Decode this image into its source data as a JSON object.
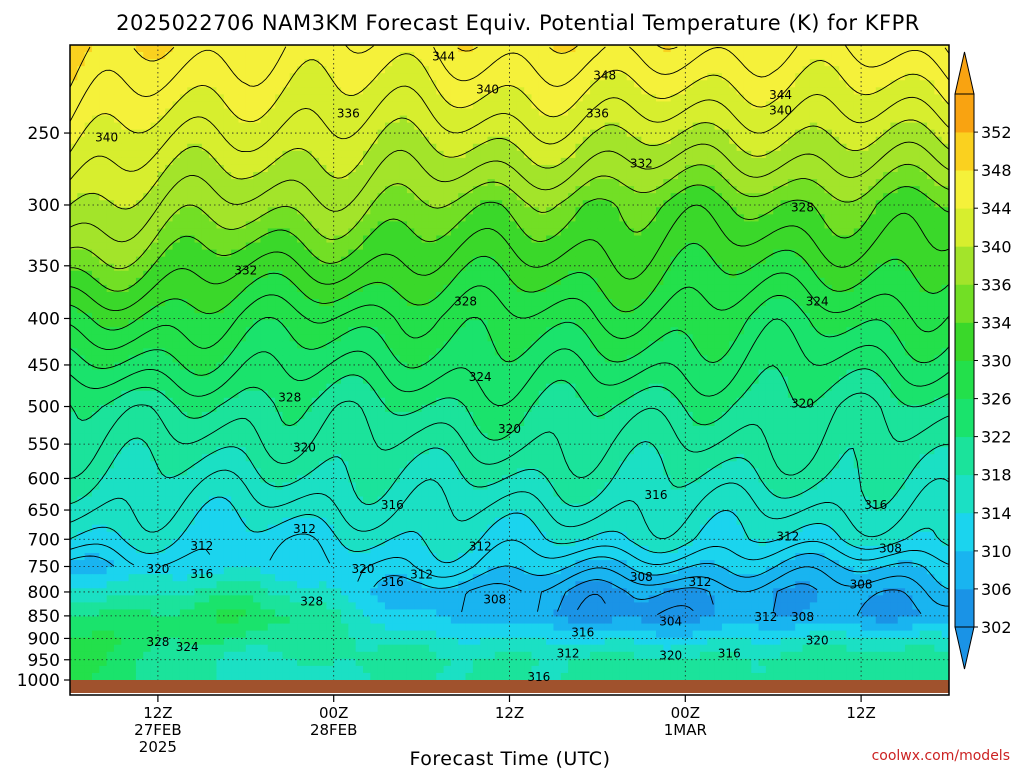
{
  "chart_data": {
    "type": "heatmap",
    "title": "2025022706 NAM3KM Forecast Equiv. Potential Temperature (K) for KFPR",
    "xlabel": "Forecast Time (UTC)",
    "ylabel": "",
    "credit": "coolwx.com/models",
    "x_ticks": [
      {
        "hour": 6,
        "lines": [
          "12Z",
          "27FEB",
          "2025"
        ]
      },
      {
        "hour": 18,
        "lines": [
          "00Z",
          "28FEB"
        ]
      },
      {
        "hour": 30,
        "lines": [
          "12Z"
        ]
      },
      {
        "hour": 42,
        "lines": [
          "00Z",
          "1MAR"
        ]
      },
      {
        "hour": 54,
        "lines": [
          "12Z"
        ]
      }
    ],
    "xlim": [
      0,
      60
    ],
    "y_ticks": [
      250,
      300,
      350,
      400,
      450,
      500,
      550,
      600,
      650,
      700,
      750,
      800,
      850,
      900,
      950,
      1000
    ],
    "ylim_hPa": [
      200,
      1000
    ],
    "grid": true,
    "colorbar": {
      "levels": [
        302,
        306,
        310,
        314,
        318,
        322,
        326,
        330,
        334,
        336,
        340,
        344,
        348,
        352
      ],
      "colors": [
        "#1a93e6",
        "#19b4f0",
        "#1bd4ee",
        "#1be0c4",
        "#1be39b",
        "#1ae36c",
        "#23e04b",
        "#3ad82a",
        "#72df25",
        "#a3e42a",
        "#d7ee2e",
        "#f5f13a",
        "#fad11f",
        "#f9a311"
      ]
    },
    "profiles": [
      {
        "hour": 0,
        "p": [
          200,
          300,
          400,
          500,
          600,
          700,
          750,
          800,
          850,
          900,
          950,
          1000
        ],
        "theta_e": [
          350,
          340,
          330,
          322,
          318,
          314,
          310,
          316,
          322,
          326,
          326,
          326
        ]
      },
      {
        "hour": 12,
        "p": [
          200,
          300,
          400,
          500,
          600,
          700,
          750,
          800,
          850,
          900,
          950,
          1000
        ],
        "theta_e": [
          346,
          337,
          328,
          321,
          317,
          313,
          312,
          320,
          326,
          322,
          316,
          316
        ]
      },
      {
        "hour": 24,
        "p": [
          200,
          300,
          400,
          500,
          600,
          700,
          750,
          800,
          850,
          900,
          950,
          1000
        ],
        "theta_e": [
          346,
          336,
          327,
          322,
          318,
          314,
          312,
          308,
          310,
          316,
          320,
          318
        ]
      },
      {
        "hour": 36,
        "p": [
          200,
          300,
          400,
          500,
          600,
          700,
          750,
          800,
          850,
          900,
          950,
          1000
        ],
        "theta_e": [
          348,
          334,
          328,
          322,
          318,
          314,
          310,
          306,
          304,
          312,
          318,
          320
        ]
      },
      {
        "hour": 48,
        "p": [
          200,
          300,
          400,
          500,
          600,
          700,
          750,
          800,
          850,
          900,
          950,
          1000
        ],
        "theta_e": [
          346,
          334,
          326,
          321,
          318,
          314,
          310,
          306,
          306,
          314,
          320,
          320
        ]
      },
      {
        "hour": 60,
        "p": [
          200,
          300,
          400,
          500,
          600,
          700,
          750,
          800,
          850,
          900,
          950,
          1000
        ],
        "theta_e": [
          348,
          334,
          327,
          321,
          318,
          314,
          310,
          308,
          306,
          316,
          320,
          320
        ]
      }
    ],
    "contour_labels": [
      {
        "value": "344",
        "hour": 25.5,
        "p": 206
      },
      {
        "value": "348",
        "hour": 36.5,
        "p": 216
      },
      {
        "value": "340",
        "hour": 28.5,
        "p": 224
      },
      {
        "value": "344",
        "hour": 48.5,
        "p": 227
      },
      {
        "value": "340",
        "hour": 2.5,
        "p": 253
      },
      {
        "value": "336",
        "hour": 19,
        "p": 238
      },
      {
        "value": "336",
        "hour": 36,
        "p": 238
      },
      {
        "value": "340",
        "hour": 48.5,
        "p": 236
      },
      {
        "value": "332",
        "hour": 39,
        "p": 270
      },
      {
        "value": "328",
        "hour": 50,
        "p": 302
      },
      {
        "value": "332",
        "hour": 12,
        "p": 354
      },
      {
        "value": "328",
        "hour": 27,
        "p": 383
      },
      {
        "value": "324",
        "hour": 51,
        "p": 383
      },
      {
        "value": "324",
        "hour": 28,
        "p": 464
      },
      {
        "value": "328",
        "hour": 15,
        "p": 489
      },
      {
        "value": "320",
        "hour": 50,
        "p": 496
      },
      {
        "value": "320",
        "hour": 30,
        "p": 529
      },
      {
        "value": "320",
        "hour": 16,
        "p": 555
      },
      {
        "value": "316",
        "hour": 40,
        "p": 626
      },
      {
        "value": "316",
        "hour": 22,
        "p": 642
      },
      {
        "value": "316",
        "hour": 55,
        "p": 642
      },
      {
        "value": "312",
        "hour": 16,
        "p": 682
      },
      {
        "value": "312",
        "hour": 49,
        "p": 695
      },
      {
        "value": "312",
        "hour": 9,
        "p": 712
      },
      {
        "value": "312",
        "hour": 28,
        "p": 713
      },
      {
        "value": "308",
        "hour": 56,
        "p": 717
      },
      {
        "value": "320",
        "hour": 6,
        "p": 755
      },
      {
        "value": "316",
        "hour": 9,
        "p": 764
      },
      {
        "value": "320",
        "hour": 20,
        "p": 755
      },
      {
        "value": "312",
        "hour": 24,
        "p": 765
      },
      {
        "value": "316",
        "hour": 22,
        "p": 780
      },
      {
        "value": "308",
        "hour": 39,
        "p": 770
      },
      {
        "value": "312",
        "hour": 43,
        "p": 780
      },
      {
        "value": "308",
        "hour": 29,
        "p": 815
      },
      {
        "value": "308",
        "hour": 54,
        "p": 785
      },
      {
        "value": "328",
        "hour": 16.5,
        "p": 820
      },
      {
        "value": "304",
        "hour": 41,
        "p": 862
      },
      {
        "value": "312",
        "hour": 47.5,
        "p": 852
      },
      {
        "value": "308",
        "hour": 50,
        "p": 852
      },
      {
        "value": "316",
        "hour": 35,
        "p": 887
      },
      {
        "value": "328",
        "hour": 6,
        "p": 908
      },
      {
        "value": "324",
        "hour": 8,
        "p": 920
      },
      {
        "value": "320",
        "hour": 51,
        "p": 905
      },
      {
        "value": "312",
        "hour": 34,
        "p": 935
      },
      {
        "value": "320",
        "hour": 41,
        "p": 940
      },
      {
        "value": "316",
        "hour": 45,
        "p": 935
      },
      {
        "value": "316",
        "hour": 32,
        "p": 992
      }
    ]
  }
}
